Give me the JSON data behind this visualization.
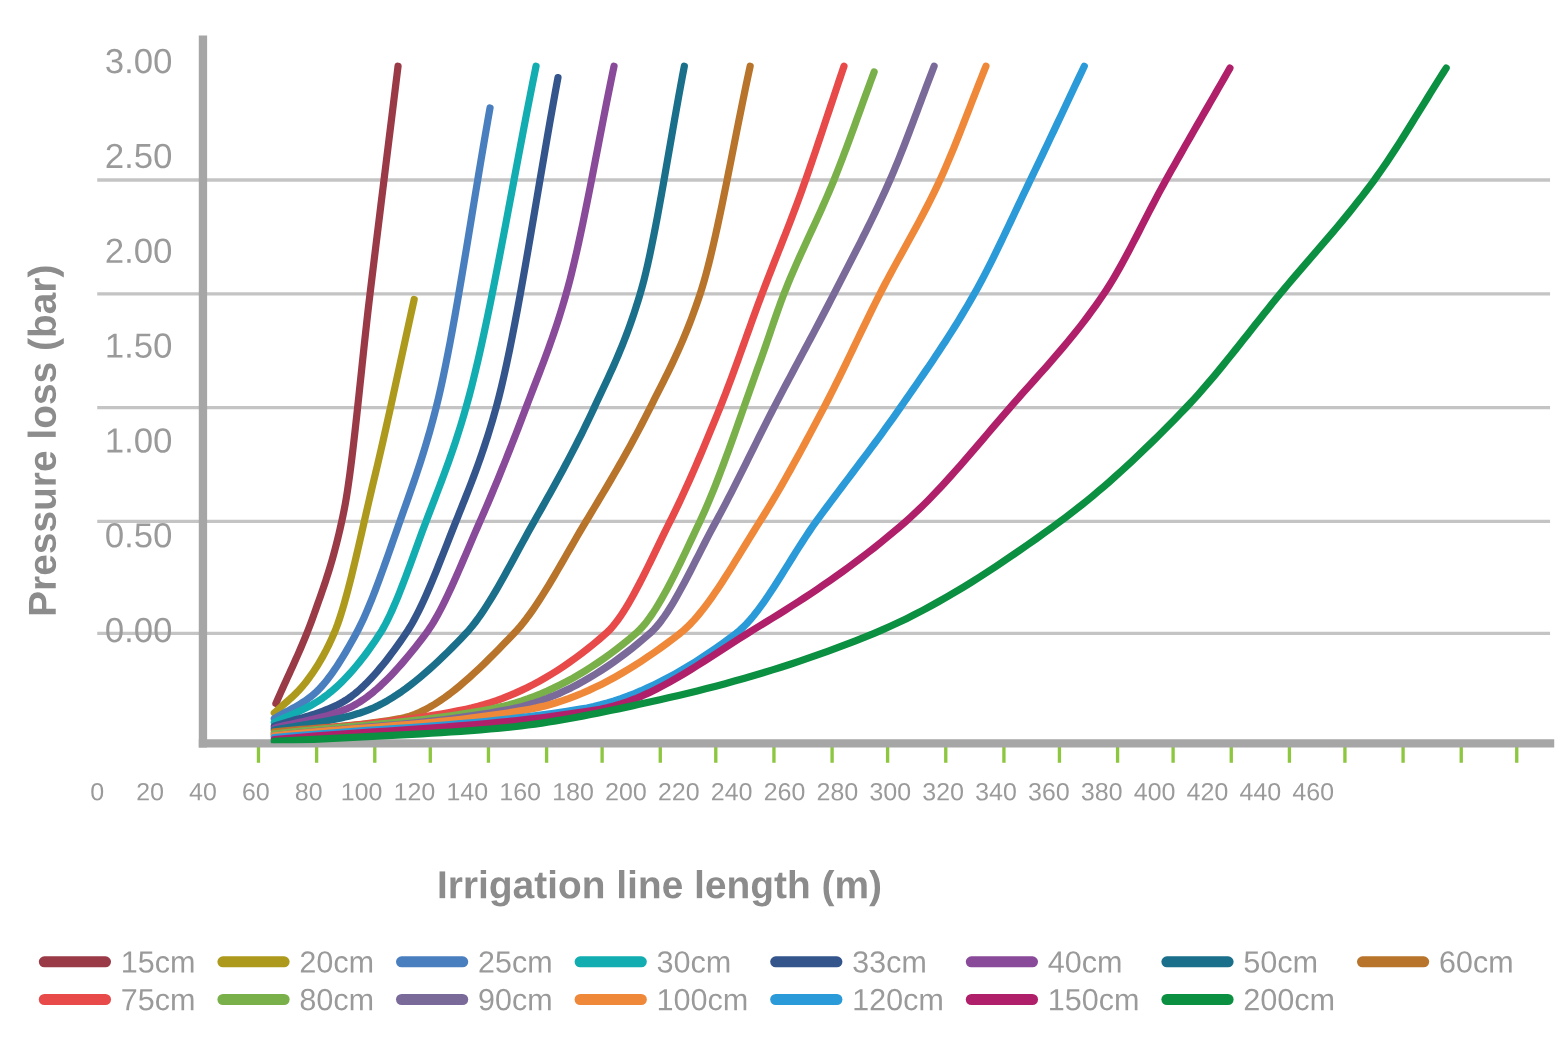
{
  "chart_data": {
    "type": "line",
    "xlabel": "Irrigation line length (m)",
    "ylabel": "Pressure loss (bar)",
    "xlim": [
      0,
      549.6
    ],
    "ylim": [
      -0.6,
      3.11
    ],
    "xticks": [
      0,
      20,
      40,
      60,
      80,
      100,
      120,
      140,
      160,
      180,
      200,
      220,
      240,
      260,
      280,
      300,
      320,
      340,
      360,
      380,
      400,
      420,
      440,
      460,
      {
        "value": 40,
        "label": null
      },
      {
        "value": 61,
        "label": null
      },
      {
        "value": 83,
        "label": null
      },
      {
        "value": 105,
        "label": null
      },
      {
        "value": 126,
        "label": null
      },
      {
        "value": 148,
        "label": null
      },
      {
        "value": 170,
        "label": null
      },
      {
        "value": 191,
        "label": null
      },
      {
        "value": 213,
        "label": null
      },
      {
        "value": 234,
        "label": null
      },
      {
        "value": 256,
        "label": null
      },
      {
        "value": 278,
        "label": null
      },
      {
        "value": 299,
        "label": null
      },
      {
        "value": 321,
        "label": null
      },
      {
        "value": 343,
        "label": null
      },
      {
        "value": 364,
        "label": null
      },
      {
        "value": 386,
        "label": null
      },
      {
        "value": 407,
        "label": null
      },
      {
        "value": 429,
        "label": null
      },
      {
        "value": 451,
        "label": null
      },
      {
        "value": 472,
        "label": null
      },
      {
        "value": 494,
        "label": null
      },
      {
        "value": 516,
        "label": null
      },
      {
        "value": 537,
        "label": null
      }
    ],
    "yticks": [
      {
        "value": 0,
        "label": "0.00"
      },
      {
        "value": 0.5,
        "label": "0.50"
      },
      {
        "value": 1,
        "label": "1.00"
      },
      {
        "value": 1.5,
        "label": "1.50"
      },
      {
        "value": 2,
        "label": "2.00"
      },
      {
        "value": 2.5,
        "label": "2.50"
      },
      {
        "value": 3,
        "label": "3.00"
      }
    ],
    "ref_lines": [
      {
        "axis": "y",
        "value": 2.37,
        "color": "#c4c4c4"
      },
      {
        "axis": "y",
        "value": 1.77,
        "color": "#c4c4c4"
      },
      {
        "axis": "y",
        "value": 1.17,
        "color": "#c4c4c4"
      },
      {
        "axis": "y",
        "value": 0.57,
        "color": "#c4c4c4"
      },
      {
        "axis": "y",
        "value": -0.02,
        "color": "#c4c4c4"
      }
    ],
    "grid": false,
    "legend": "bottom",
    "marker": "none",
    "line_style": "solid",
    "series": [
      {
        "name": "15cm",
        "color": "#9b3a47",
        "x": [
          67.6,
          82.0,
          93.4,
          103.2,
          113.8
        ],
        "values": [
          -0.39,
          0.08,
          0.63,
          1.77,
          2.97
        ]
      },
      {
        "name": "20cm",
        "color": "#ad9a1c",
        "x": [
          67.0,
          78.2,
          89.6,
          104.7,
          119.9
        ],
        "values": [
          -0.44,
          -0.29,
          -0.02,
          0.79,
          1.74
        ]
      },
      {
        "name": "25cm",
        "color": "#4a7fbf",
        "x": [
          67.0,
          82.0,
          98.0,
          114.5,
          128.2,
          148.6
        ],
        "values": [
          -0.47,
          -0.34,
          -0.02,
          0.57,
          1.17,
          2.75
        ]
      },
      {
        "name": "30cm",
        "color": "#12adb0",
        "x": [
          67.0,
          84.4,
          107.0,
          124.4,
          139.5,
          166.0
        ],
        "values": [
          -0.49,
          -0.37,
          -0.02,
          0.57,
          1.17,
          2.97
        ]
      },
      {
        "name": "33cm",
        "color": "#33558c",
        "x": [
          67.0,
          91.9,
          116.8,
          135.7,
          150.9,
          174.3
        ],
        "values": [
          -0.51,
          -0.39,
          -0.02,
          0.57,
          1.17,
          2.91
        ]
      },
      {
        "name": "40cm",
        "color": "#8a4a9a",
        "x": [
          67.0,
          94.1,
          124.4,
          144.8,
          162.2,
          177.4,
          195.5
        ],
        "values": [
          -0.52,
          -0.42,
          -0.02,
          0.57,
          1.17,
          1.77,
          2.97
        ]
      },
      {
        "name": "50cm",
        "color": "#1a6f8a",
        "x": [
          67.0,
          99.4,
          139.5,
          165.3,
          188.0,
          205.4,
          222.1
        ],
        "values": [
          -0.53,
          -0.44,
          -0.02,
          0.57,
          1.17,
          1.77,
          2.97
        ]
      },
      {
        "name": "60cm",
        "color": "#b8742a",
        "x": [
          67.0,
          114.5,
          157.7,
          184.9,
          209.2,
          228.1,
          247.0
        ],
        "values": [
          -0.54,
          -0.47,
          -0.02,
          0.57,
          1.17,
          1.77,
          2.97
        ]
      },
      {
        "name": "75cm",
        "color": "#e84a4a",
        "x": [
          67.0,
          139.5,
          192.5,
          216.7,
          235.6,
          251.5,
          265.9,
          282.5
        ],
        "values": [
          -0.55,
          -0.42,
          -0.02,
          0.57,
          1.17,
          1.77,
          2.29,
          2.97
        ]
      },
      {
        "name": "80cm",
        "color": "#7ab04a",
        "x": [
          67.0,
          148.6,
          203.8,
          228.0,
          250.7,
          259.8,
          278.7,
          293.9
        ],
        "values": [
          -0.55,
          -0.42,
          -0.02,
          0.57,
          1.41,
          1.77,
          2.37,
          2.94
        ]
      },
      {
        "name": "90cm",
        "color": "#7a6a9a",
        "x": [
          67.0,
          156.2,
          209.1,
          234.1,
          256.0,
          278.7,
          299.9,
          316.6
        ],
        "values": [
          -0.56,
          -0.42,
          -0.02,
          0.57,
          1.17,
          1.77,
          2.37,
          2.97
        ]
      },
      {
        "name": "100cm",
        "color": "#f0883a",
        "x": [
          67.0,
          163.7,
          220.5,
          250.7,
          274.9,
          296.1,
          318.8,
          336.2
        ],
        "values": [
          -0.56,
          -0.42,
          -0.02,
          0.57,
          1.17,
          1.77,
          2.37,
          2.97
        ]
      },
      {
        "name": "120cm",
        "color": "#2a9ad8",
        "x": [
          67.0,
          182.7,
          241.7,
          272.0,
          303.8,
          331.8,
          353.0,
          373.4
        ],
        "values": [
          -0.57,
          -0.42,
          -0.02,
          0.57,
          1.17,
          1.77,
          2.37,
          2.97
        ]
      },
      {
        "name": "150cm",
        "color": "#b0206a",
        "x": [
          67.0,
          190.2,
          250.7,
          305.9,
          345.3,
          380.8,
          404.3,
          428.5
        ],
        "values": [
          -0.58,
          -0.42,
          0.02,
          0.57,
          1.17,
          1.77,
          2.37,
          2.96
        ]
      },
      {
        "name": "200cm",
        "color": "#0a9040",
        "x": [
          67.0,
          152.4,
          212.9,
          293.9,
          364.3,
          411.9,
          447.5,
          483.1,
          510.3
        ],
        "values": [
          -0.59,
          -0.52,
          -0.37,
          -0.02,
          0.57,
          1.17,
          1.77,
          2.37,
          2.96
        ]
      }
    ]
  }
}
